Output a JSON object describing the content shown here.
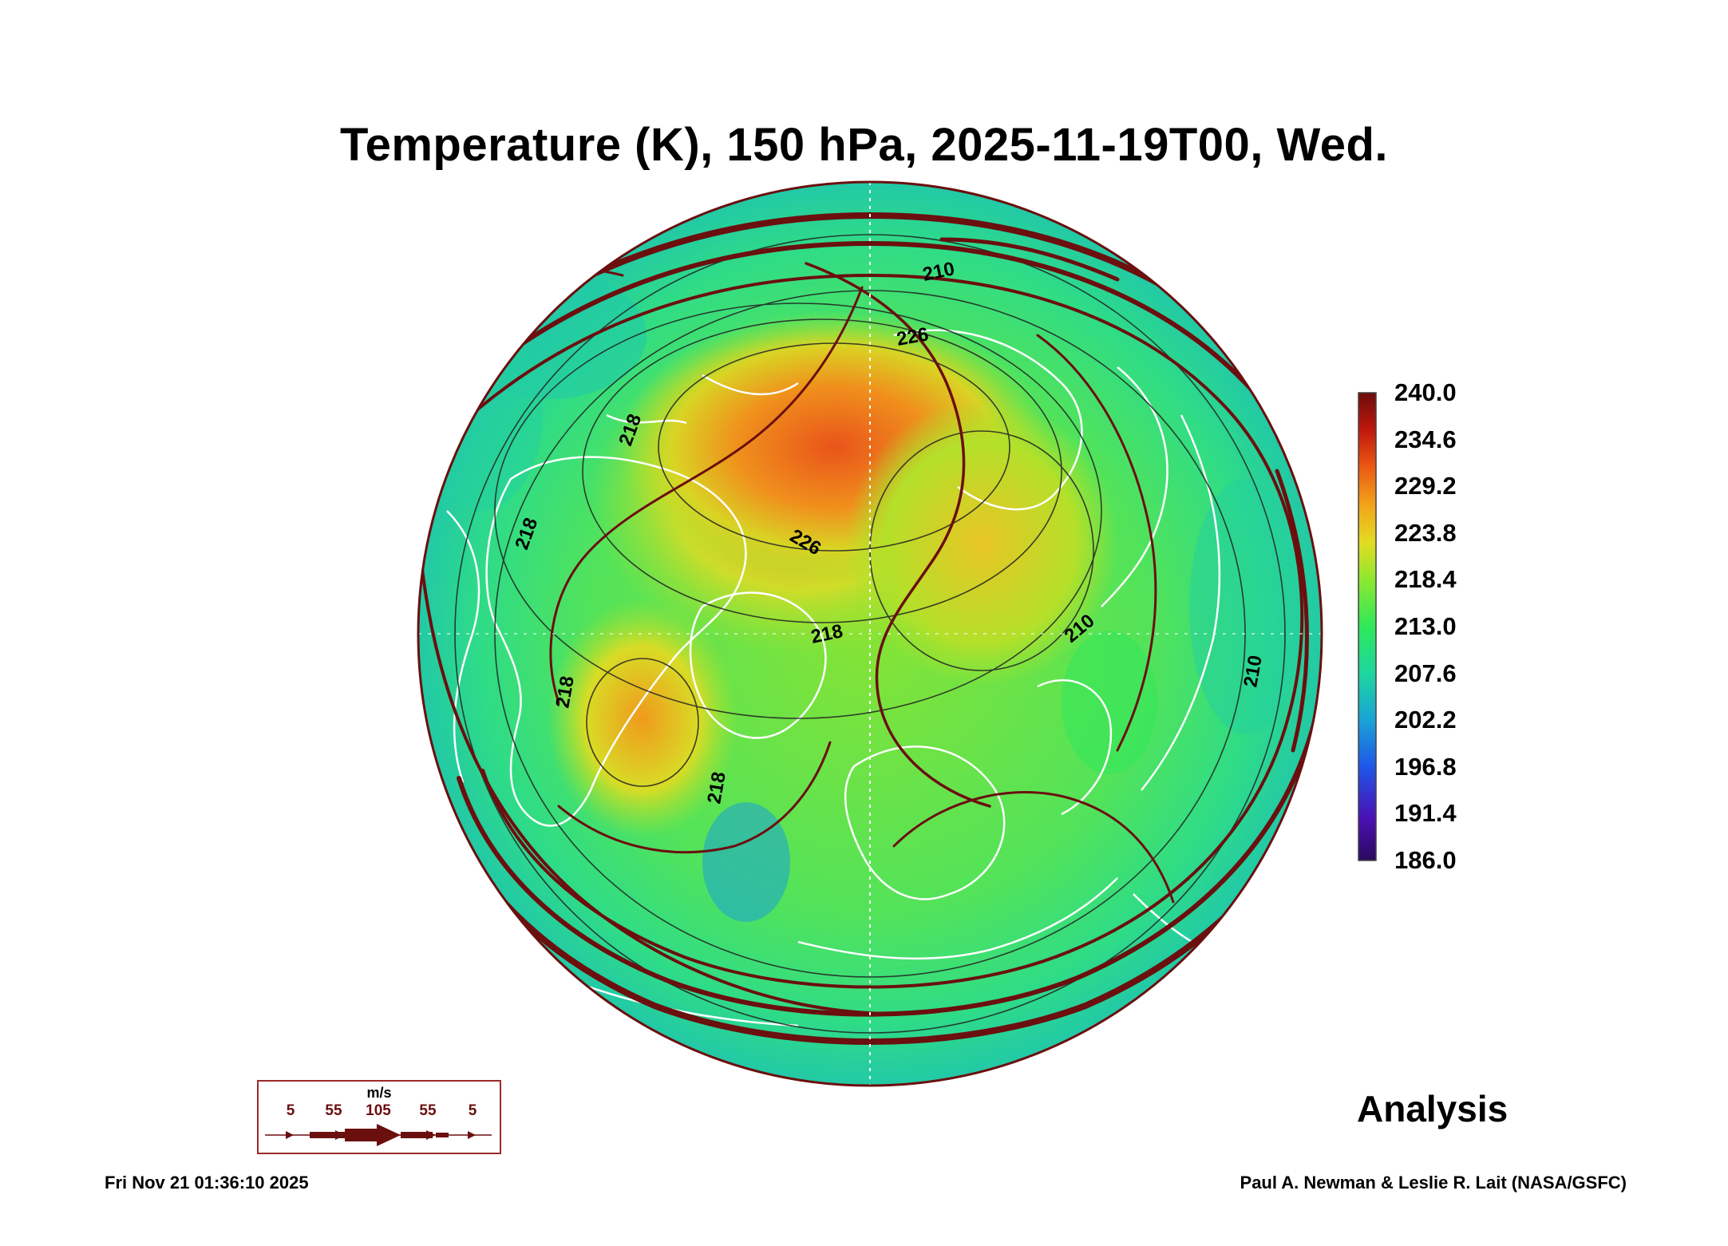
{
  "title": "Temperature (K), 150 hPa, 2025-11-19T00, Wed.",
  "map": {
    "projection": "north-polar-orthographic",
    "field": "temperature",
    "streamline_color": "#6b0f0f",
    "coastline_color": "#ffffff",
    "contour_labels": [
      "210",
      "226",
      "226",
      "218",
      "218",
      "218",
      "210",
      "210",
      "218",
      "218"
    ]
  },
  "colorbar": {
    "labels": [
      "240.0",
      "234.6",
      "229.2",
      "223.8",
      "218.4",
      "213.0",
      "207.6",
      "202.2",
      "196.8",
      "191.4",
      "186.0"
    ],
    "min": 186.0,
    "max": 240.0,
    "colors": [
      "#2b0a5e",
      "#4b10b5",
      "#1f56e8",
      "#1aa3d6",
      "#1ed6a0",
      "#2ee85a",
      "#8de830",
      "#e3dc22",
      "#f2a41a",
      "#ec5a12",
      "#c0180d",
      "#6d0b0b"
    ]
  },
  "wind_scale": {
    "unit": "m/s",
    "labels": [
      "5",
      "55",
      "105",
      "55",
      "5"
    ],
    "color": "#6b0f0f"
  },
  "analysis_label": "Analysis",
  "timestamp": "Fri Nov 21 01:36:10 2025",
  "credit": "Paul A. Newman & Leslie R. Lait (NASA/GSFC)"
}
